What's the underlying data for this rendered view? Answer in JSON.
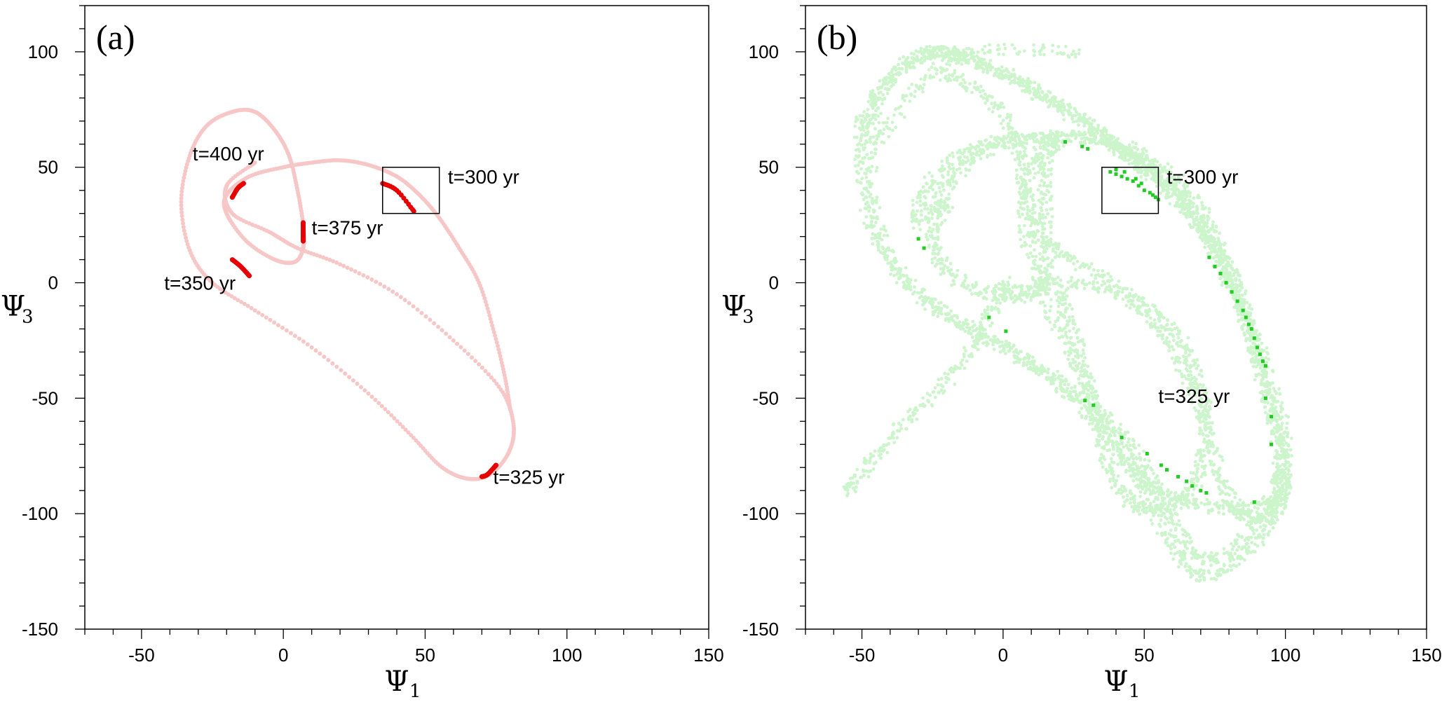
{
  "chart_data": [
    {
      "type": "scatter",
      "panel_label": "(a)",
      "xlabel": "Ψ",
      "xlabel_sub": "1",
      "ylabel": "Ψ",
      "ylabel_sub": "3",
      "xlim": [
        -70,
        150
      ],
      "ylim": [
        -150,
        120
      ],
      "xticks": [
        -50,
        0,
        50,
        100,
        150
      ],
      "yticks": [
        100,
        50,
        0,
        -50,
        -100,
        -150
      ],
      "background_color": "#f7c6c6",
      "highlight_color": "#e60000",
      "box": {
        "x": [
          35,
          55
        ],
        "y": [
          30,
          50
        ]
      },
      "background_curve": [
        [
          -10,
          52
        ],
        [
          -20,
          42
        ],
        [
          -18,
          30
        ],
        [
          -5,
          22
        ],
        [
          5,
          15
        ],
        [
          20,
          8
        ],
        [
          40,
          -5
        ],
        [
          60,
          -25
        ],
        [
          76,
          -45
        ],
        [
          81,
          -60
        ],
        [
          80,
          -72
        ],
        [
          74,
          -82
        ],
        [
          66,
          -85
        ],
        [
          56,
          -80
        ],
        [
          45,
          -66
        ],
        [
          30,
          -48
        ],
        [
          10,
          -28
        ],
        [
          -10,
          -12
        ],
        [
          -25,
          0
        ],
        [
          -33,
          14
        ],
        [
          -36,
          35
        ],
        [
          -33,
          55
        ],
        [
          -27,
          68
        ],
        [
          -18,
          74
        ],
        [
          -10,
          74
        ],
        [
          -3,
          66
        ],
        [
          2,
          55
        ],
        [
          5,
          40
        ],
        [
          7,
          25
        ],
        [
          7,
          15
        ],
        [
          4,
          9
        ],
        [
          -3,
          10
        ],
        [
          -13,
          18
        ],
        [
          -20,
          30
        ],
        [
          -20,
          38
        ],
        [
          -12,
          46
        ],
        [
          0,
          50
        ],
        [
          10,
          52
        ],
        [
          20,
          53
        ],
        [
          30,
          51
        ],
        [
          40,
          46
        ],
        [
          48,
          38
        ],
        [
          55,
          28
        ],
        [
          62,
          15
        ],
        [
          69,
          0
        ],
        [
          74,
          -20
        ],
        [
          78,
          -40
        ],
        [
          80,
          -55
        ]
      ],
      "highlight_segments": [
        [
          [
            35,
            43
          ],
          [
            40,
            40
          ],
          [
            46,
            31
          ]
        ],
        [
          [
            -18,
            37
          ],
          [
            -16,
            41
          ],
          [
            -14,
            43
          ]
        ],
        [
          [
            7,
            26
          ],
          [
            7,
            22
          ],
          [
            7,
            18
          ]
        ],
        [
          [
            -18,
            10
          ],
          [
            -15,
            7
          ],
          [
            -12,
            3
          ]
        ],
        [
          [
            70,
            -84
          ],
          [
            72,
            -83
          ],
          [
            75,
            -79
          ]
        ]
      ],
      "annotations": [
        {
          "text": "t=400 yr",
          "x": -32,
          "y": 53
        },
        {
          "text": "t=300 yr",
          "x": 58,
          "y": 43
        },
        {
          "text": "t=375 yr",
          "x": 10,
          "y": 21
        },
        {
          "text": "t=350 yr",
          "x": -42,
          "y": -3
        },
        {
          "text": "t=325 yr",
          "x": 74,
          "y": -87
        }
      ]
    },
    {
      "type": "scatter",
      "panel_label": "(b)",
      "xlabel": "Ψ",
      "xlabel_sub": "1",
      "ylabel": "Ψ",
      "ylabel_sub": "3",
      "xlim": [
        -70,
        150
      ],
      "ylim": [
        -150,
        120
      ],
      "xticks": [
        -50,
        0,
        50,
        100,
        150
      ],
      "yticks": [
        100,
        50,
        0,
        -50,
        -100,
        -150
      ],
      "background_color": "#ccf5cc",
      "highlight_color": "#22cc22",
      "box": {
        "x": [
          35,
          55
        ],
        "y": [
          30,
          50
        ]
      },
      "background_curves": [
        [
          [
            -50,
            70
          ],
          [
            -40,
            88
          ],
          [
            -28,
            99
          ],
          [
            -15,
            98
          ],
          [
            0,
            90
          ],
          [
            15,
            80
          ],
          [
            28,
            70
          ],
          [
            40,
            60
          ],
          [
            50,
            50
          ],
          [
            60,
            40
          ],
          [
            70,
            25
          ],
          [
            80,
            5
          ],
          [
            88,
            -20
          ],
          [
            95,
            -45
          ],
          [
            100,
            -70
          ],
          [
            98,
            -95
          ],
          [
            88,
            -115
          ],
          [
            72,
            -127
          ],
          [
            60,
            -115
          ],
          [
            50,
            -90
          ],
          [
            40,
            -70
          ],
          [
            25,
            -50
          ],
          [
            10,
            -35
          ],
          [
            -10,
            -20
          ],
          [
            -30,
            -5
          ],
          [
            -45,
            20
          ],
          [
            -50,
            50
          ],
          [
            -50,
            70
          ]
        ],
        [
          [
            -45,
            80
          ],
          [
            -35,
            95
          ],
          [
            -22,
            100
          ],
          [
            -10,
            96
          ],
          [
            5,
            88
          ],
          [
            20,
            76
          ],
          [
            35,
            64
          ],
          [
            47,
            52
          ],
          [
            58,
            40
          ],
          [
            68,
            26
          ],
          [
            78,
            6
          ],
          [
            86,
            -18
          ],
          [
            92,
            -42
          ],
          [
            97,
            -65
          ],
          [
            97,
            -90
          ],
          [
            86,
            -110
          ],
          [
            72,
            -120
          ],
          [
            62,
            -108
          ],
          [
            54,
            -88
          ],
          [
            44,
            -68
          ],
          [
            30,
            -52
          ],
          [
            14,
            -38
          ],
          [
            -5,
            -25
          ],
          [
            -25,
            -10
          ],
          [
            -40,
            10
          ],
          [
            -47,
            40
          ],
          [
            -45,
            80
          ]
        ],
        [
          [
            -20,
            35
          ],
          [
            -25,
            20
          ],
          [
            -20,
            5
          ],
          [
            -5,
            -5
          ],
          [
            10,
            -5
          ],
          [
            15,
            5
          ],
          [
            15,
            30
          ],
          [
            15,
            50
          ],
          [
            20,
            62
          ],
          [
            35,
            62
          ],
          [
            50,
            55
          ],
          [
            65,
            40
          ],
          [
            75,
            20
          ],
          [
            80,
            0
          ]
        ],
        [
          [
            -25,
            30
          ],
          [
            -18,
            45
          ],
          [
            -5,
            58
          ],
          [
            15,
            63
          ],
          [
            35,
            61
          ],
          [
            50,
            52
          ],
          [
            62,
            40
          ],
          [
            72,
            22
          ],
          [
            82,
            0
          ],
          [
            88,
            -25
          ],
          [
            94,
            -50
          ],
          [
            99,
            -72
          ],
          [
            96,
            -92
          ],
          [
            85,
            -98
          ],
          [
            70,
            -96
          ],
          [
            55,
            -90
          ],
          [
            45,
            -80
          ],
          [
            35,
            -60
          ],
          [
            28,
            -40
          ],
          [
            20,
            -20
          ],
          [
            10,
            10
          ],
          [
            8,
            40
          ],
          [
            15,
            62
          ]
        ],
        [
          [
            -30,
            25
          ],
          [
            -28,
            40
          ],
          [
            -15,
            55
          ],
          [
            0,
            62
          ],
          [
            20,
            63
          ]
        ],
        [
          [
            -20,
            90
          ],
          [
            -5,
            80
          ],
          [
            5,
            60
          ],
          [
            8,
            40
          ],
          [
            12,
            20
          ],
          [
            25,
            10
          ],
          [
            45,
            -5
          ],
          [
            60,
            -20
          ],
          [
            68,
            -40
          ],
          [
            72,
            -60
          ],
          [
            70,
            -80
          ],
          [
            62,
            -95
          ],
          [
            50,
            -98
          ],
          [
            42,
            -90
          ],
          [
            35,
            -70
          ],
          [
            30,
            -45
          ],
          [
            25,
            -20
          ],
          [
            20,
            -5
          ]
        ],
        [
          [
            0,
            0
          ],
          [
            -5,
            -15
          ],
          [
            -15,
            -35
          ],
          [
            -30,
            -55
          ],
          [
            -45,
            -75
          ],
          [
            -55,
            -90
          ]
        ],
        [
          [
            25,
            100
          ],
          [
            -10,
            100
          ],
          [
            -30,
            85
          ],
          [
            -45,
            60
          ]
        ],
        [
          [
            0,
            -5
          ],
          [
            20,
            0
          ],
          [
            40,
            -5
          ],
          [
            55,
            -20
          ],
          [
            65,
            -40
          ],
          [
            72,
            -65
          ],
          [
            78,
            -88
          ],
          [
            85,
            -100
          ],
          [
            95,
            -100
          ],
          [
            100,
            -85
          ]
        ]
      ],
      "highlight_points": [
        [
          22,
          61
        ],
        [
          28,
          59
        ],
        [
          30,
          58
        ],
        [
          38,
          48
        ],
        [
          40,
          47
        ],
        [
          42,
          46
        ],
        [
          44,
          45
        ],
        [
          46,
          44
        ],
        [
          48,
          42
        ],
        [
          50,
          40
        ],
        [
          52,
          39
        ],
        [
          54,
          37
        ],
        [
          55,
          36
        ],
        [
          40,
          49
        ],
        [
          43,
          48
        ],
        [
          47,
          45
        ],
        [
          49,
          43
        ],
        [
          53,
          38
        ],
        [
          73,
          11
        ],
        [
          75,
          7
        ],
        [
          77,
          4
        ],
        [
          79,
          0
        ],
        [
          81,
          -4
        ],
        [
          83,
          -8
        ],
        [
          85,
          -12
        ],
        [
          87,
          -18
        ],
        [
          89,
          -24
        ],
        [
          90,
          -28
        ],
        [
          91,
          -31
        ],
        [
          92,
          -34
        ],
        [
          93,
          -36
        ],
        [
          88,
          -20
        ],
        [
          86,
          -15
        ],
        [
          95,
          -58
        ],
        [
          95,
          -70
        ],
        [
          93,
          -50
        ],
        [
          -30,
          19
        ],
        [
          -28,
          15
        ],
        [
          -5,
          -15
        ],
        [
          1,
          -21
        ],
        [
          29,
          -51
        ],
        [
          32,
          -53
        ],
        [
          42,
          -67
        ],
        [
          51,
          -74
        ],
        [
          56,
          -79
        ],
        [
          58,
          -81
        ],
        [
          62,
          -84
        ],
        [
          65,
          -86
        ],
        [
          67,
          -88
        ],
        [
          70,
          -90
        ],
        [
          72,
          -91
        ],
        [
          89,
          -95
        ]
      ],
      "annotations": [
        {
          "text": "t=300 yr",
          "x": 58,
          "y": 43
        },
        {
          "text": "t=325 yr",
          "x": 55,
          "y": -52
        }
      ]
    }
  ]
}
